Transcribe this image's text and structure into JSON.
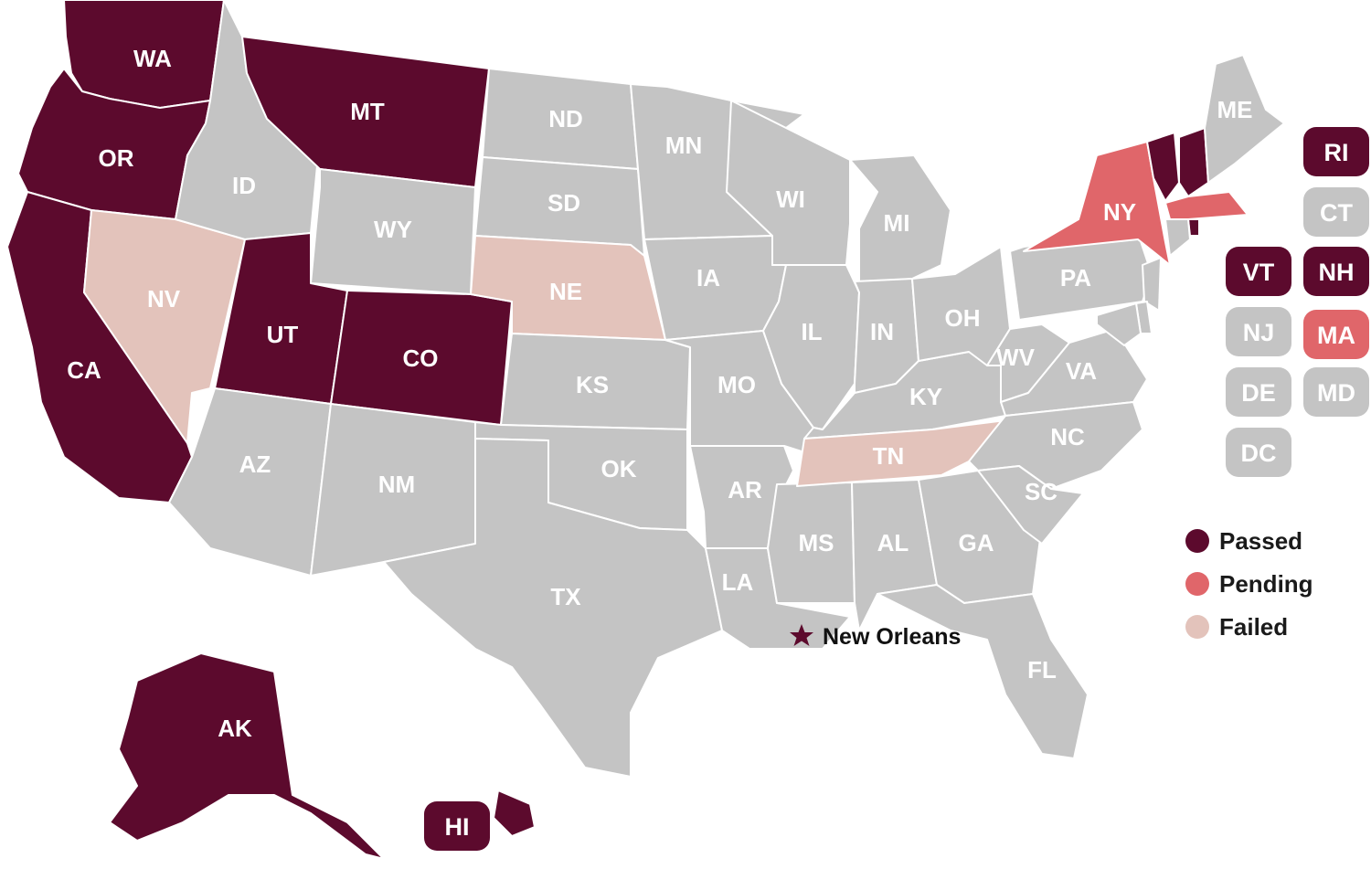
{
  "colors": {
    "passed": "#5c0a2d",
    "pending": "#e0666a",
    "failed": "#e3c3bb",
    "none": "#c4c4c4",
    "border": "#ffffff",
    "star": "#5c0a2d"
  },
  "legend": [
    {
      "key": "passed",
      "label": "Passed"
    },
    {
      "key": "pending",
      "label": "Pending"
    },
    {
      "key": "failed",
      "label": "Failed"
    }
  ],
  "city_marker": {
    "label": "New Orleans",
    "icon": "star-icon"
  },
  "states": [
    {
      "abbr": "WA",
      "status": "passed"
    },
    {
      "abbr": "OR",
      "status": "passed"
    },
    {
      "abbr": "CA",
      "status": "passed"
    },
    {
      "abbr": "NV",
      "status": "failed"
    },
    {
      "abbr": "ID",
      "status": "none"
    },
    {
      "abbr": "MT",
      "status": "passed"
    },
    {
      "abbr": "WY",
      "status": "none"
    },
    {
      "abbr": "UT",
      "status": "passed"
    },
    {
      "abbr": "CO",
      "status": "passed"
    },
    {
      "abbr": "AZ",
      "status": "none"
    },
    {
      "abbr": "NM",
      "status": "none"
    },
    {
      "abbr": "ND",
      "status": "none"
    },
    {
      "abbr": "SD",
      "status": "none"
    },
    {
      "abbr": "NE",
      "status": "failed"
    },
    {
      "abbr": "KS",
      "status": "none"
    },
    {
      "abbr": "OK",
      "status": "none"
    },
    {
      "abbr": "TX",
      "status": "none"
    },
    {
      "abbr": "MN",
      "status": "none"
    },
    {
      "abbr": "IA",
      "status": "none"
    },
    {
      "abbr": "MO",
      "status": "none"
    },
    {
      "abbr": "AR",
      "status": "none"
    },
    {
      "abbr": "LA",
      "status": "none"
    },
    {
      "abbr": "WI",
      "status": "none"
    },
    {
      "abbr": "IL",
      "status": "none"
    },
    {
      "abbr": "MS",
      "status": "none"
    },
    {
      "abbr": "MI",
      "status": "none"
    },
    {
      "abbr": "IN",
      "status": "none"
    },
    {
      "abbr": "KY",
      "status": "none"
    },
    {
      "abbr": "TN",
      "status": "failed"
    },
    {
      "abbr": "AL",
      "status": "none"
    },
    {
      "abbr": "GA",
      "status": "none"
    },
    {
      "abbr": "FL",
      "status": "none"
    },
    {
      "abbr": "OH",
      "status": "none"
    },
    {
      "abbr": "WV",
      "status": "none"
    },
    {
      "abbr": "VA",
      "status": "none"
    },
    {
      "abbr": "NC",
      "status": "none"
    },
    {
      "abbr": "SC",
      "status": "none"
    },
    {
      "abbr": "PA",
      "status": "none"
    },
    {
      "abbr": "NY",
      "status": "pending"
    },
    {
      "abbr": "VT",
      "status": "passed"
    },
    {
      "abbr": "NH",
      "status": "passed"
    },
    {
      "abbr": "ME",
      "status": "none"
    },
    {
      "abbr": "MA",
      "status": "pending"
    },
    {
      "abbr": "RI",
      "status": "passed"
    },
    {
      "abbr": "CT",
      "status": "none"
    },
    {
      "abbr": "NJ",
      "status": "none"
    },
    {
      "abbr": "DE",
      "status": "none"
    },
    {
      "abbr": "MD",
      "status": "none"
    },
    {
      "abbr": "DC",
      "status": "none"
    },
    {
      "abbr": "AK",
      "status": "passed"
    },
    {
      "abbr": "HI",
      "status": "passed"
    }
  ],
  "badges": [
    {
      "abbr": "RI",
      "status": "passed"
    },
    {
      "abbr": "CT",
      "status": "none"
    },
    {
      "abbr": "VT",
      "status": "passed"
    },
    {
      "abbr": "NH",
      "status": "passed"
    },
    {
      "abbr": "NJ",
      "status": "none"
    },
    {
      "abbr": "MA",
      "status": "pending"
    },
    {
      "abbr": "DE",
      "status": "none"
    },
    {
      "abbr": "MD",
      "status": "none"
    },
    {
      "abbr": "DC",
      "status": "none"
    },
    {
      "abbr": "HI",
      "status": "passed"
    }
  ]
}
